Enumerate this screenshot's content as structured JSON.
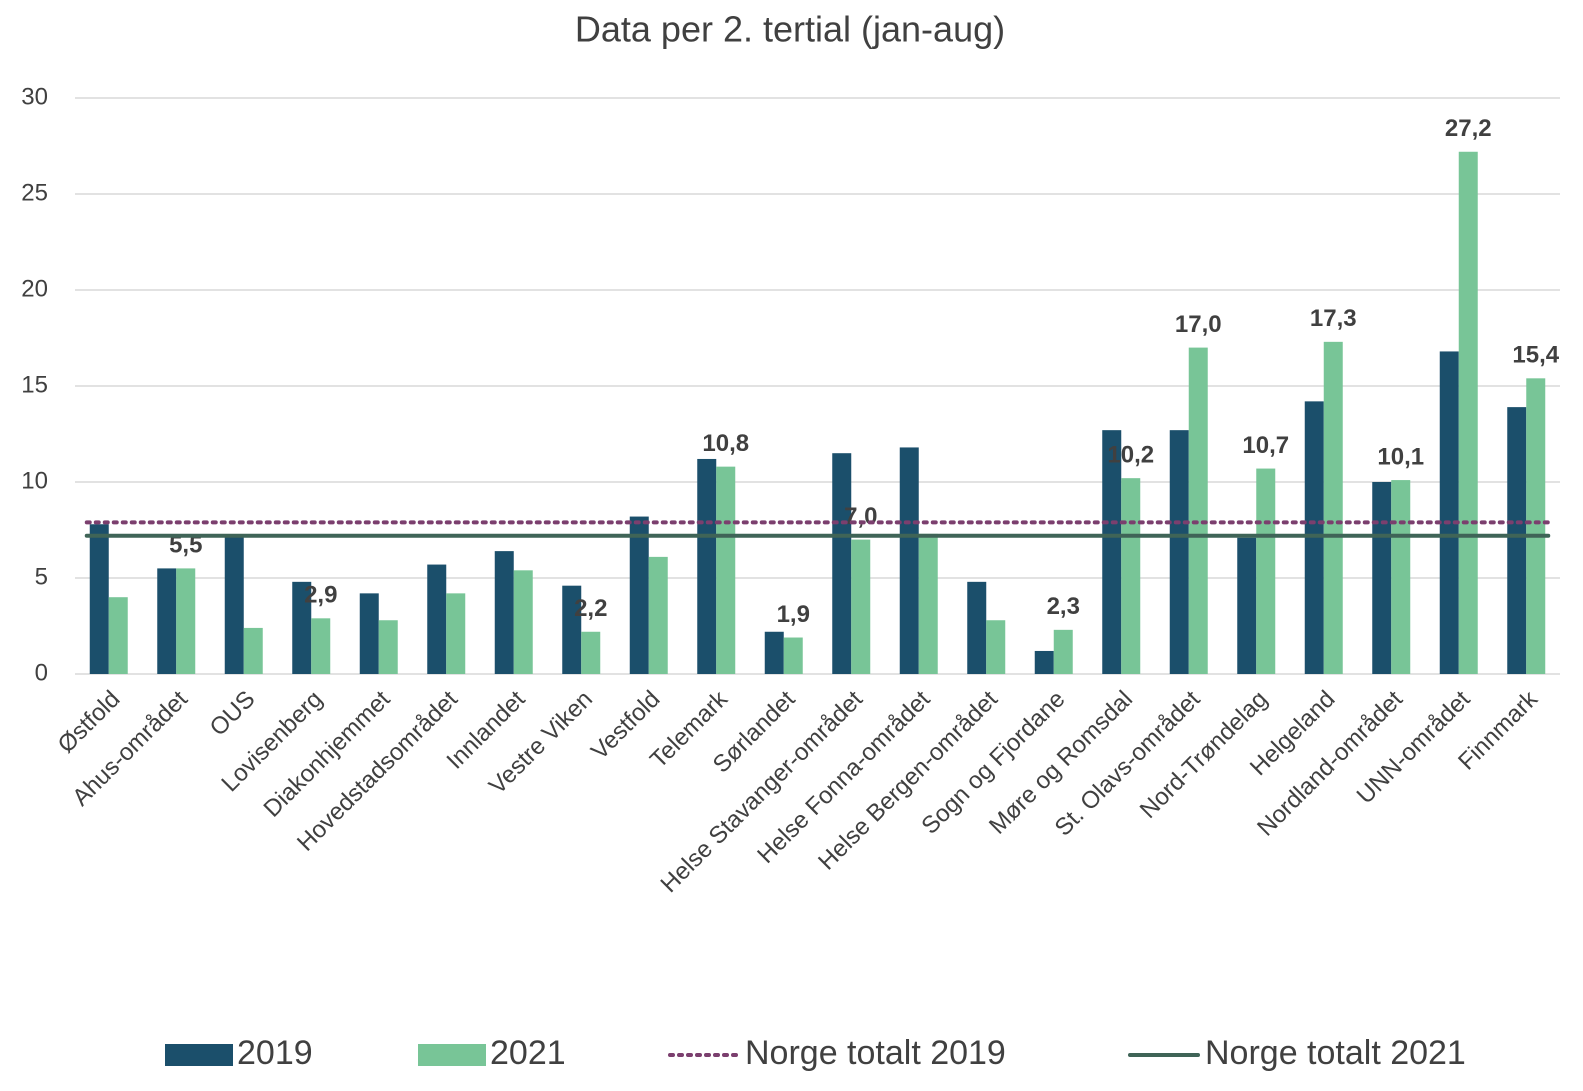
{
  "chart_data": {
    "type": "bar",
    "title": "Data per 2. tertial (jan-aug)",
    "categories": [
      "Østfold",
      "Ahus-området",
      "OUS",
      "Lovisenberg",
      "Diakonhjemmet",
      "Hovedstadsområdet",
      "Innlandet",
      "Vestre Viken",
      "Vestfold",
      "Telemark",
      "Sørlandet",
      "Helse Stavanger-området",
      "Helse Fonna-området",
      "Helse Bergen-området",
      "Sogn og Fjordane",
      "Møre og Romsdal",
      "St. Olavs-området",
      "Nord-Trøndelag",
      "Helgeland",
      "Nordland-området",
      "UNN-området",
      "Finnmark"
    ],
    "series": [
      {
        "name": "2019",
        "color": "#1b4f6b",
        "values": [
          7.8,
          5.5,
          7.2,
          4.8,
          4.2,
          5.7,
          6.4,
          4.6,
          8.2,
          11.2,
          2.2,
          11.5,
          11.8,
          4.8,
          1.2,
          12.7,
          12.7,
          7.1,
          14.2,
          10.0,
          16.8,
          13.9
        ]
      },
      {
        "name": "2021",
        "color": "#78c597",
        "values": [
          4.0,
          5.5,
          2.4,
          2.9,
          2.8,
          4.2,
          5.4,
          2.2,
          6.1,
          10.8,
          1.9,
          7.0,
          7.3,
          2.8,
          2.3,
          10.2,
          17.0,
          10.7,
          17.3,
          10.1,
          27.2,
          15.4
        ],
        "value_labels": [
          null,
          "5,5",
          null,
          "2,9",
          null,
          null,
          null,
          "2,2",
          null,
          "10,8",
          "1,9",
          "7,0",
          null,
          null,
          "2,3",
          "10,2",
          "17,0",
          "10,7",
          "17,3",
          "10,1",
          "27,2",
          "15,4"
        ]
      }
    ],
    "lines": [
      {
        "name": "Norge totalt 2019",
        "color": "#7b3f6e",
        "style": "dotted",
        "value": 7.9
      },
      {
        "name": "Norge totalt 2021",
        "color": "#3f6457",
        "style": "solid",
        "value": 7.2
      }
    ],
    "ylim": [
      0,
      30
    ],
    "yticks": [
      0,
      5,
      10,
      15,
      20,
      25,
      30
    ],
    "grid": true,
    "legend": "bottom"
  }
}
